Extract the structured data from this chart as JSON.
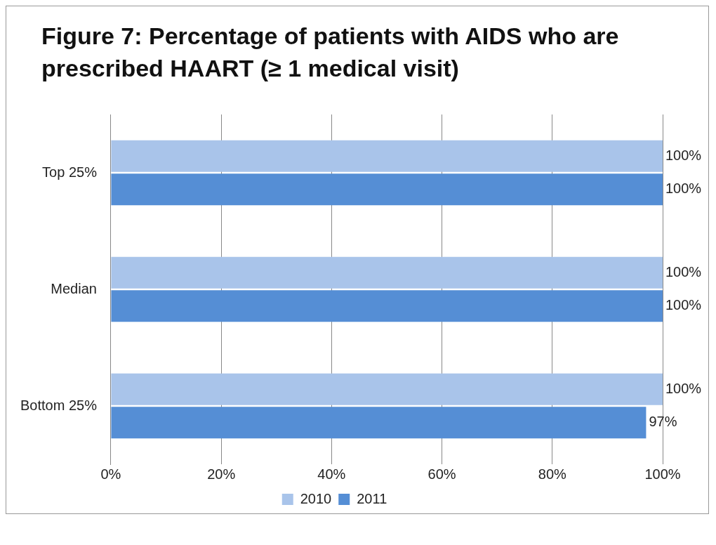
{
  "chart_data": {
    "type": "bar",
    "orientation": "horizontal",
    "title": "Figure 7: Percentage of patients with AIDS who are prescribed HAART (≥ 1 medical visit)",
    "categories": [
      "Top 25%",
      "Median",
      "Bottom 25%"
    ],
    "series": [
      {
        "name": "2010",
        "color": "#a9c4ea",
        "values": [
          100,
          100,
          100
        ],
        "value_labels": [
          "100%",
          "100%",
          "100%"
        ]
      },
      {
        "name": "2011",
        "color": "#558ed5",
        "values": [
          100,
          100,
          97
        ],
        "value_labels": [
          "100%",
          "100%",
          "97%"
        ]
      }
    ],
    "xlim": [
      0,
      100
    ],
    "xticks": [
      {
        "value": 0,
        "label": "0%"
      },
      {
        "value": 20,
        "label": "20%"
      },
      {
        "value": 40,
        "label": "40%"
      },
      {
        "value": 60,
        "label": "60%"
      },
      {
        "value": 80,
        "label": "80%"
      },
      {
        "value": 100,
        "label": "100%"
      }
    ],
    "grid": "x",
    "legend": "bottom"
  }
}
